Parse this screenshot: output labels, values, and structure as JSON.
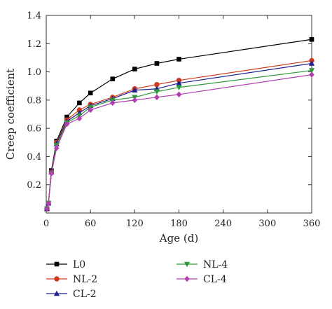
{
  "chart_data": {
    "type": "line",
    "xlabel": "Age (d)",
    "ylabel": "Creep coefficient",
    "xlim": [
      0,
      360
    ],
    "ylim": [
      0,
      1.4
    ],
    "xticks": [
      "0",
      "60",
      "120",
      "180",
      "240",
      "300",
      "360"
    ],
    "yticks": [
      "0.2",
      "0.4",
      "0.6",
      "0.8",
      "1.0",
      "1.2",
      "1.4"
    ],
    "grid": false,
    "legend_position": "bottom",
    "series": [
      {
        "name": "L0",
        "color": "#000000",
        "marker": "square",
        "x": [
          1,
          3,
          7,
          14,
          28,
          45,
          60,
          90,
          120,
          150,
          180,
          360
        ],
        "y": [
          0.03,
          0.07,
          0.3,
          0.51,
          0.68,
          0.78,
          0.85,
          0.95,
          1.02,
          1.06,
          1.09,
          1.23
        ]
      },
      {
        "name": "NL-2",
        "color": "#d03a1c",
        "marker": "circle",
        "x": [
          1,
          3,
          7,
          14,
          28,
          45,
          60,
          90,
          120,
          150,
          180,
          360
        ],
        "y": [
          0.03,
          0.07,
          0.29,
          0.5,
          0.66,
          0.73,
          0.77,
          0.82,
          0.88,
          0.91,
          0.94,
          1.08
        ]
      },
      {
        "name": "CL-2",
        "color": "#1f1f8f",
        "marker": "triangle-up",
        "x": [
          1,
          3,
          7,
          14,
          28,
          45,
          60,
          90,
          120,
          150,
          180,
          360
        ],
        "y": [
          0.03,
          0.07,
          0.29,
          0.49,
          0.65,
          0.71,
          0.76,
          0.81,
          0.87,
          0.88,
          0.92,
          1.06
        ]
      },
      {
        "name": "NL-4",
        "color": "#2e9a3a",
        "marker": "triangle-down",
        "x": [
          1,
          3,
          7,
          14,
          28,
          45,
          60,
          90,
          120,
          150,
          180,
          360
        ],
        "y": [
          0.03,
          0.07,
          0.28,
          0.48,
          0.64,
          0.69,
          0.75,
          0.8,
          0.82,
          0.86,
          0.89,
          1.01
        ]
      },
      {
        "name": "CL-4",
        "color": "#b23fb0",
        "marker": "diamond",
        "x": [
          1,
          3,
          7,
          14,
          28,
          45,
          60,
          90,
          120,
          150,
          180,
          360
        ],
        "y": [
          0.03,
          0.07,
          0.28,
          0.46,
          0.63,
          0.67,
          0.73,
          0.78,
          0.8,
          0.82,
          0.84,
          0.98
        ]
      }
    ]
  }
}
